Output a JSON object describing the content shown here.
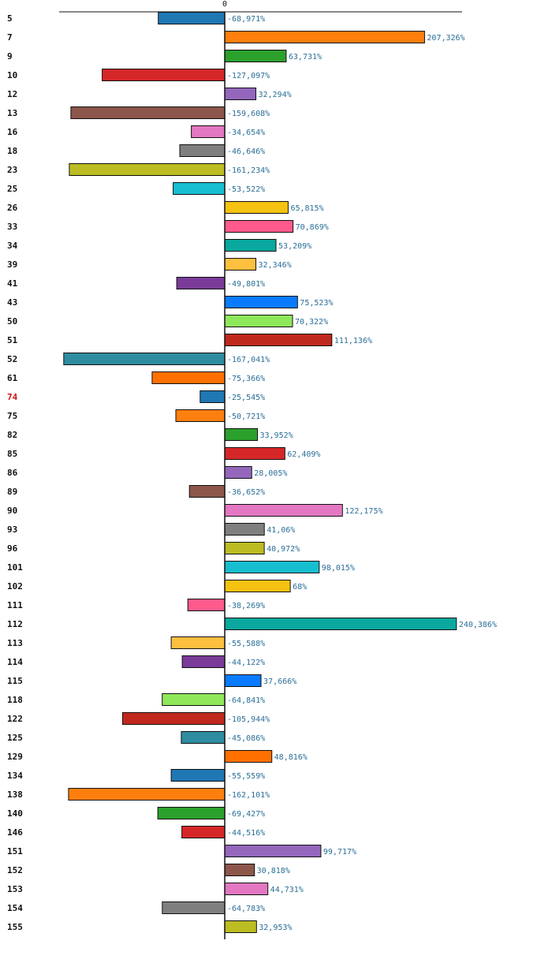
{
  "chart_data": {
    "type": "bar",
    "orientation": "horizontal",
    "title": "",
    "xlabel": "",
    "ylabel": "",
    "zero_tick_label": "0",
    "value_suffix": "%",
    "xlim": [
      -180,
      250
    ],
    "highlight_category": "74",
    "categories": [
      "5",
      "7",
      "9",
      "10",
      "12",
      "13",
      "16",
      "18",
      "23",
      "25",
      "26",
      "33",
      "34",
      "39",
      "41",
      "43",
      "50",
      "51",
      "52",
      "61",
      "74",
      "75",
      "82",
      "85",
      "86",
      "89",
      "90",
      "93",
      "96",
      "101",
      "102",
      "111",
      "112",
      "113",
      "114",
      "115",
      "118",
      "122",
      "125",
      "129",
      "134",
      "138",
      "140",
      "146",
      "151",
      "152",
      "153",
      "154",
      "155"
    ],
    "values": [
      -68.971,
      207.326,
      63.731,
      -127.097,
      32.294,
      -159.608,
      -34.654,
      -46.646,
      -161.234,
      -53.522,
      65.815,
      70.869,
      53.209,
      32.346,
      -49.801,
      75.523,
      70.322,
      111.136,
      -167.041,
      -75.366,
      -25.545,
      -50.721,
      33.952,
      62.409,
      28.005,
      -36.652,
      122.175,
      41.06,
      40.972,
      98.015,
      68,
      -38.269,
      240.386,
      -55.588,
      -44.122,
      37.666,
      -64.841,
      -105.944,
      -45.086,
      48.816,
      -55.559,
      -162.101,
      -69.427,
      -44.516,
      99.717,
      30.818,
      44.731,
      -64.783,
      32.953
    ],
    "value_labels": [
      "-68,971%",
      "207,326%",
      "63,731%",
      "-127,097%",
      "32,294%",
      "-159,608%",
      "-34,654%",
      "-46,646%",
      "-161,234%",
      "-53,522%",
      "65,815%",
      "70,869%",
      "53,209%",
      "32,346%",
      "-49,801%",
      "75,523%",
      "70,322%",
      "111,136%",
      "-167,041%",
      "-75,366%",
      "-25,545%",
      "-50,721%",
      "33,952%",
      "62,409%",
      "28,005%",
      "-36,652%",
      "122,175%",
      "41,06%",
      "40,972%",
      "98,015%",
      "68%",
      "-38,269%",
      "240,386%",
      "-55,588%",
      "-44,122%",
      "37,666%",
      "-64,841%",
      "-105,944%",
      "-45,086%",
      "48,816%",
      "-55,559%",
      "-162,101%",
      "-69,427%",
      "-44,516%",
      "99,717%",
      "30,818%",
      "44,731%",
      "-64,783%",
      "32,953%"
    ],
    "colors": [
      "#1f77b4",
      "#ff7f0e",
      "#2ca02c",
      "#d62728",
      "#9467bd",
      "#8c564b",
      "#e377c2",
      "#7f7f7f",
      "#bcbd22",
      "#17becf",
      "#f5c211",
      "#ff5a8c",
      "#0aa89e",
      "#ffbf3f",
      "#7a3b99",
      "#0a7bff",
      "#8ee85a",
      "#c0281e",
      "#2e8ca0",
      "#ff7000"
    ]
  }
}
